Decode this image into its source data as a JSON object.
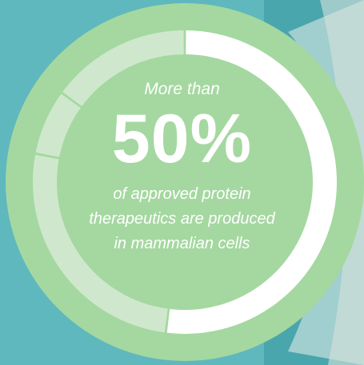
{
  "colors": {
    "background_teal": "#5fb8bd",
    "circle_green": "#a4d8a0",
    "segment_white": "#ffffff",
    "segment_pale": "#cfe8cd"
  },
  "text": {
    "prefix": "More than",
    "headline": "50%",
    "line1": "of approved protein",
    "line2": "therapeutics are produced",
    "line3": "in mammalian cells"
  },
  "chart_data": {
    "type": "pie",
    "title": "",
    "slices": [
      {
        "label": "",
        "value": 52,
        "color": "#ffffff"
      },
      {
        "label": "",
        "value": 26,
        "color": "#cfe8cd"
      },
      {
        "label": "",
        "value": 7,
        "color": "#cfe8cd"
      },
      {
        "label": "",
        "value": 15,
        "color": "#cfe8cd"
      }
    ]
  }
}
